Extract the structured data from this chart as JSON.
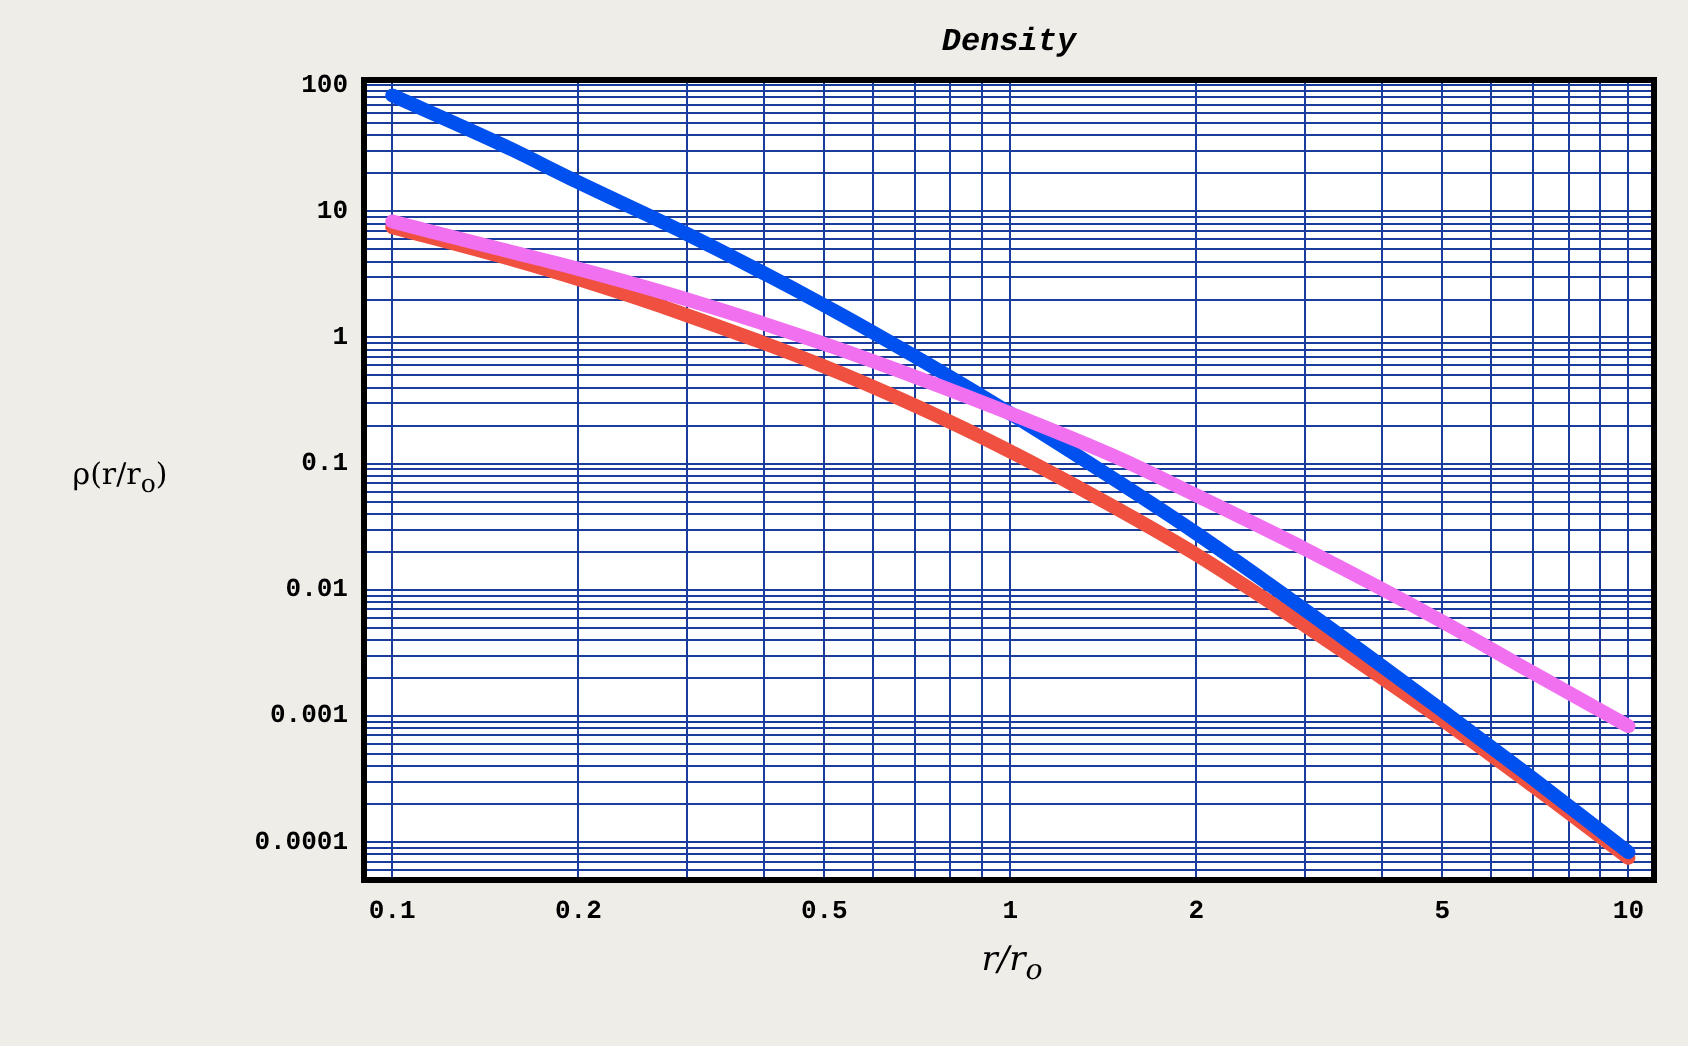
{
  "chart_data": {
    "type": "line",
    "title": "Density",
    "xlabel": "r/r$_{o}$",
    "ylabel": "ρ(r/r$_{o}$)",
    "log": "xy",
    "grid": true,
    "legend": false,
    "marker": "none",
    "line_style": "solid",
    "x": [
      0.1,
      0.15,
      0.2,
      0.3,
      0.5,
      0.7,
      1,
      1.5,
      2,
      3,
      5,
      7,
      10
    ],
    "xlim": [
      0.09,
      11
    ],
    "xticks": [
      0.1,
      0.2,
      {
        "value": 0.3,
        "label": null
      },
      {
        "value": 0.4,
        "label": null
      },
      0.5,
      {
        "value": 0.6,
        "label": null
      },
      {
        "value": 0.7,
        "label": null
      },
      {
        "value": 0.8,
        "label": null
      },
      {
        "value": 0.9,
        "label": null
      },
      1,
      2,
      {
        "value": 3,
        "label": null
      },
      {
        "value": 4,
        "label": null
      },
      5,
      {
        "value": 6,
        "label": null
      },
      {
        "value": 7,
        "label": null
      },
      {
        "value": 8,
        "label": null
      },
      {
        "value": 9,
        "label": null
      },
      10
    ],
    "ylim": [
      5e-05,
      110
    ],
    "yticks": [
      {
        "value": 5e-05,
        "label": null
      },
      {
        "value": 6e-05,
        "label": null
      },
      {
        "value": 7e-05,
        "label": null
      },
      {
        "value": 8e-05,
        "label": null
      },
      {
        "value": 9e-05,
        "label": null
      },
      0.0001,
      {
        "value": 0.0002,
        "label": null
      },
      {
        "value": 0.0003,
        "label": null
      },
      {
        "value": 0.0004,
        "label": null
      },
      {
        "value": 0.0005,
        "label": null
      },
      {
        "value": 0.0006,
        "label": null
      },
      {
        "value": 0.0007,
        "label": null
      },
      {
        "value": 0.0008,
        "label": null
      },
      {
        "value": 0.0009,
        "label": null
      },
      0.001,
      {
        "value": 0.002,
        "label": null
      },
      {
        "value": 0.003,
        "label": null
      },
      {
        "value": 0.004,
        "label": null
      },
      {
        "value": 0.005,
        "label": null
      },
      {
        "value": 0.006,
        "label": null
      },
      {
        "value": 0.007,
        "label": null
      },
      {
        "value": 0.008,
        "label": null
      },
      {
        "value": 0.009,
        "label": null
      },
      0.01,
      {
        "value": 0.02,
        "label": null
      },
      {
        "value": 0.03,
        "label": null
      },
      {
        "value": 0.04,
        "label": null
      },
      {
        "value": 0.05,
        "label": null
      },
      {
        "value": 0.06,
        "label": null
      },
      {
        "value": 0.07,
        "label": null
      },
      {
        "value": 0.08,
        "label": null
      },
      {
        "value": 0.09,
        "label": null
      },
      0.1,
      {
        "value": 0.2,
        "label": null
      },
      {
        "value": 0.3,
        "label": null
      },
      {
        "value": 0.4,
        "label": null
      },
      {
        "value": 0.5,
        "label": null
      },
      {
        "value": 0.6,
        "label": null
      },
      {
        "value": 0.7,
        "label": null
      },
      {
        "value": 0.8,
        "label": null
      },
      {
        "value": 0.9,
        "label": null
      },
      1,
      {
        "value": 2,
        "label": null
      },
      {
        "value": 3,
        "label": null
      },
      {
        "value": 4,
        "label": null
      },
      {
        "value": 5,
        "label": null
      },
      {
        "value": 6,
        "label": null
      },
      {
        "value": 7,
        "label": null
      },
      {
        "value": 8,
        "label": null
      },
      {
        "value": 9,
        "label": null
      },
      10,
      {
        "value": 20,
        "label": null
      },
      {
        "value": 30,
        "label": null
      },
      {
        "value": 40,
        "label": null
      },
      {
        "value": 50,
        "label": null
      },
      {
        "value": 60,
        "label": null
      },
      {
        "value": 70,
        "label": null
      },
      {
        "value": 80,
        "label": null
      },
      {
        "value": 90,
        "label": null
      },
      100
    ],
    "series": [
      {
        "color": "#f070f0",
        "values": [
          8.3,
          5.0,
          3.5,
          2.0,
          0.89,
          0.49,
          0.25,
          0.11,
          0.056,
          0.021,
          0.0056,
          0.0022,
          0.00083
        ]
      },
      {
        "color": "#0050f0",
        "values": [
          83,
          34,
          17,
          6.6,
          1.8,
          0.71,
          0.25,
          0.071,
          0.028,
          0.0069,
          0.0011,
          0.00032,
          8.3e-05
        ]
      },
      {
        "color": "#f05040",
        "values": [
          7.5,
          4.4,
          2.9,
          1.5,
          0.59,
          0.29,
          0.125,
          0.043,
          0.019,
          0.0052,
          0.00093,
          0.00028,
          7.5e-05
        ]
      }
    ]
  }
}
